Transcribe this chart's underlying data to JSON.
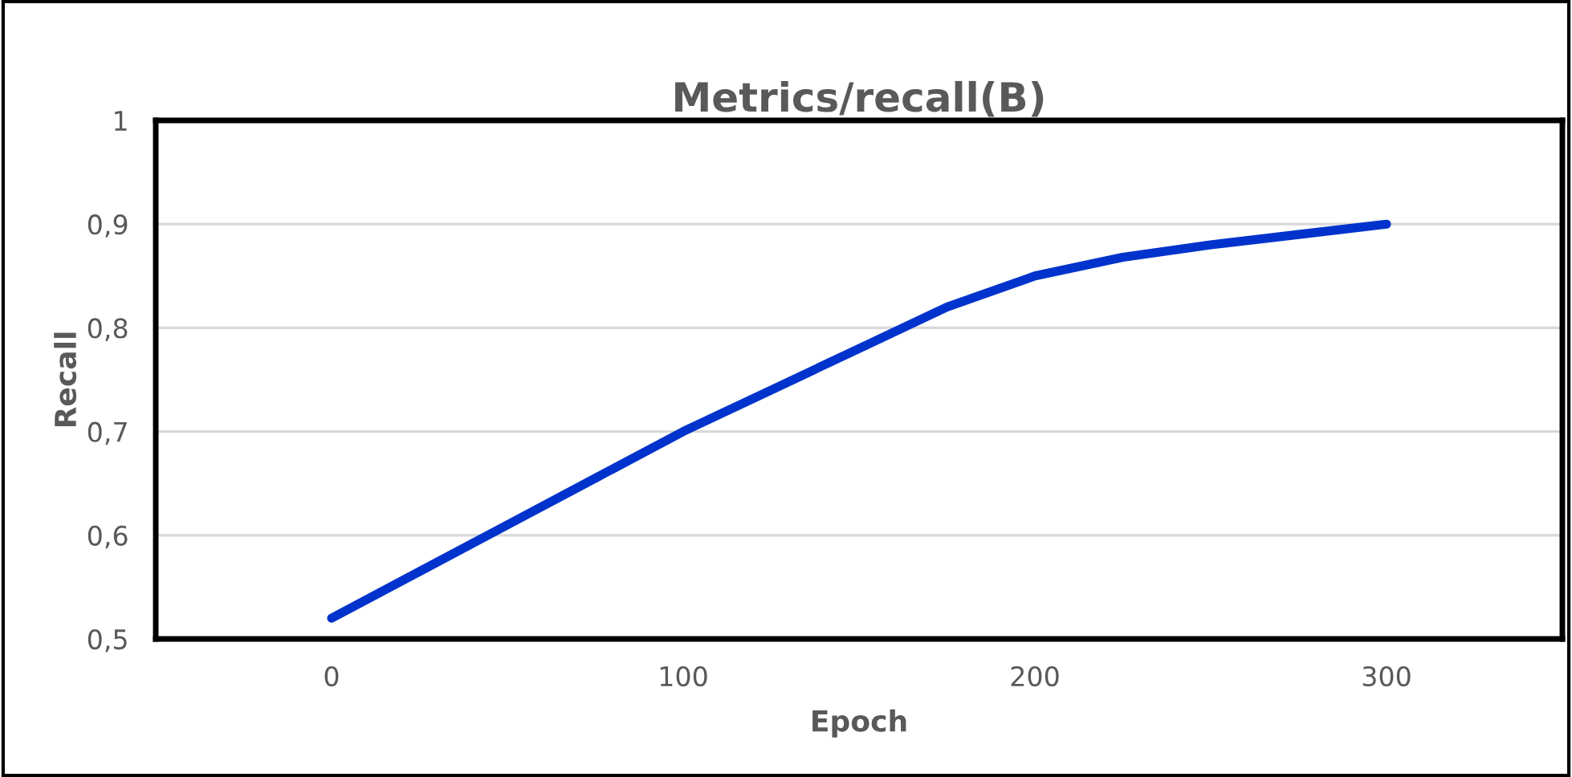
{
  "chart_data": {
    "type": "line",
    "title": "Metrics/recall(B)",
    "xlabel": "Epoch",
    "ylabel": "Recall",
    "x": [
      0,
      25,
      50,
      75,
      100,
      125,
      150,
      175,
      200,
      225,
      250,
      275,
      300
    ],
    "series": [
      {
        "color": "#0033cc",
        "values": [
          0.52,
          0.565,
          0.61,
          0.655,
          0.7,
          0.74,
          0.78,
          0.82,
          0.85,
          0.868,
          0.88,
          0.89,
          0.9
        ]
      }
    ],
    "xlim": [
      -50,
      350
    ],
    "xticks": [
      0,
      100,
      200,
      300
    ],
    "ylim": [
      0.5,
      1
    ],
    "yticks": [
      {
        "value": 0.5,
        "label": "0,5"
      },
      {
        "value": 0.6,
        "label": "0,6"
      },
      {
        "value": 0.7,
        "label": "0,7"
      },
      {
        "value": 0.8,
        "label": "0,8"
      },
      {
        "value": 0.9,
        "label": "0,9"
      },
      {
        "value": 1,
        "label": "1"
      }
    ],
    "grid": "y",
    "marker": "none",
    "line_style": "solid",
    "legend": false
  }
}
